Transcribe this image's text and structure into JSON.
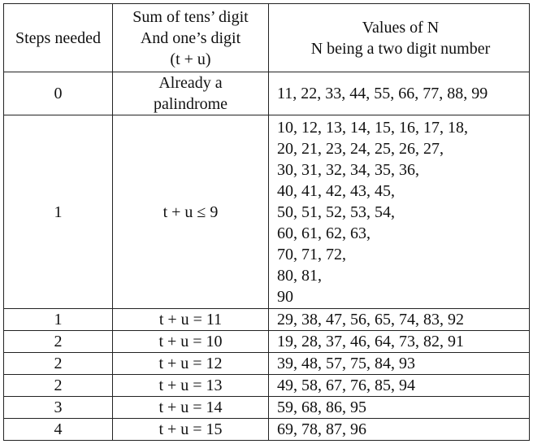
{
  "table": {
    "header": [
      [
        "Steps needed"
      ],
      [
        "Sum of tens’ digit",
        "And one’s digit",
        "(t + u)"
      ],
      [
        "Values of N",
        "N being a two digit number"
      ]
    ],
    "rows": [
      [
        [
          "0"
        ],
        [
          "Already a",
          "palindrome"
        ],
        [
          "11, 22, 33, 44, 55, 66, 77, 88, 99"
        ]
      ],
      [
        [
          "1"
        ],
        [
          "t + u ≤ 9"
        ],
        [
          "10, 12, 13, 14, 15, 16, 17, 18,",
          "20, 21, 23, 24, 25, 26, 27,",
          "30, 31, 32, 34, 35, 36,",
          "40, 41, 42, 43, 45,",
          "50, 51, 52, 53, 54,",
          "60, 61, 62, 63,",
          "70, 71, 72,",
          "80, 81,",
          "90"
        ]
      ],
      [
        [
          "1"
        ],
        [
          "t + u = 11"
        ],
        [
          "29, 38, 47, 56, 65, 74, 83, 92"
        ]
      ],
      [
        [
          "2"
        ],
        [
          "t + u = 10"
        ],
        [
          "19, 28, 37, 46, 64, 73, 82, 91"
        ]
      ],
      [
        [
          "2"
        ],
        [
          "t + u = 12"
        ],
        [
          "39, 48, 57, 75, 84, 93"
        ]
      ],
      [
        [
          "2"
        ],
        [
          "t + u = 13"
        ],
        [
          "49, 58, 67, 76, 85, 94"
        ]
      ],
      [
        [
          "3"
        ],
        [
          "t + u = 14"
        ],
        [
          "59, 68, 86, 95"
        ]
      ],
      [
        [
          "4"
        ],
        [
          "t + u = 15"
        ],
        [
          "69, 78, 87, 96"
        ]
      ]
    ]
  }
}
